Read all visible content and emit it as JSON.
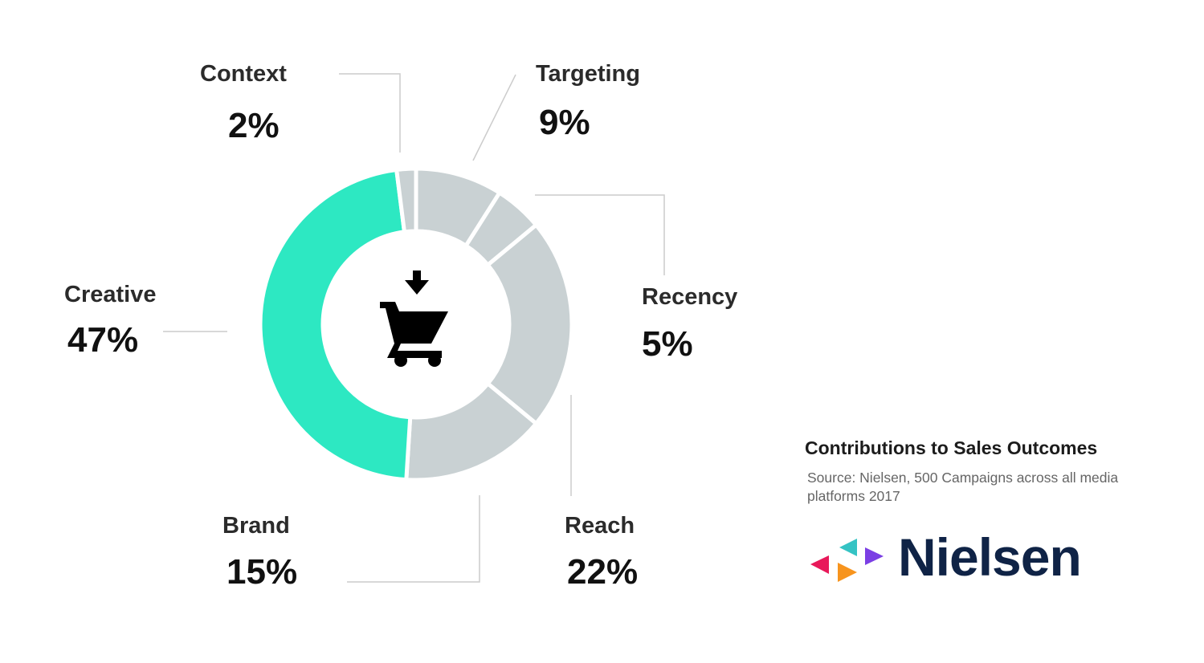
{
  "chart_data": {
    "type": "pie",
    "title": "Contributions to Sales Outcomes",
    "source": "Source: Nielsen, 500 Campaigns across all media platforms 2017",
    "slices": [
      {
        "label": "Targeting",
        "value": 9,
        "display": "9%",
        "color": "#c9d1d3"
      },
      {
        "label": "Recency",
        "value": 5,
        "display": "5%",
        "color": "#c9d1d3"
      },
      {
        "label": "Reach",
        "value": 22,
        "display": "22%",
        "color": "#c9d1d3"
      },
      {
        "label": "Brand",
        "value": 15,
        "display": "15%",
        "color": "#c9d1d3"
      },
      {
        "label": "Creative",
        "value": 47,
        "display": "47%",
        "color": "#2de8c2"
      },
      {
        "label": "Context",
        "value": 2,
        "display": "2%",
        "color": "#c9d1d3"
      }
    ],
    "center_icon": "shopping-cart-add-icon",
    "style": "donut"
  },
  "brand": {
    "name": "Nielsen",
    "mark_colors": [
      "#35c3c4",
      "#e8195a",
      "#7b3fe4",
      "#f7941d"
    ],
    "text_color": "#0f2346"
  },
  "colors": {
    "leader_line": "#cccccc",
    "label_text": "#2b2b2b"
  }
}
